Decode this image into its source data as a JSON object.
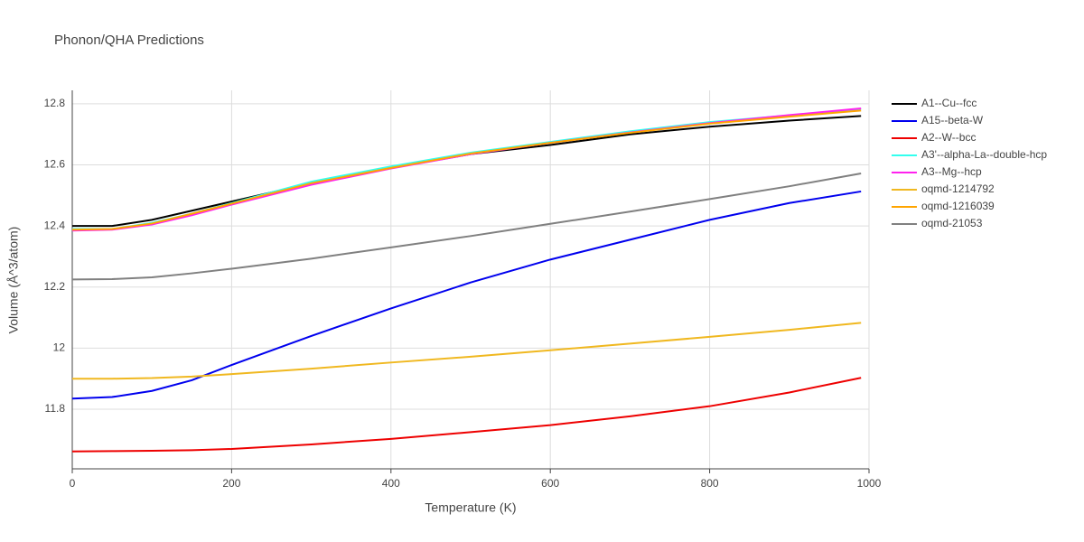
{
  "chart_data": {
    "type": "line",
    "title": "Phonon/QHA Predictions",
    "x_label": "Temperature (K)",
    "y_label": "Volume (Å^3/atom)",
    "x": [
      0,
      50,
      100,
      150,
      200,
      300,
      400,
      500,
      600,
      700,
      800,
      900,
      990
    ],
    "series": [
      {
        "name": "A1--Cu--fcc",
        "color": "#000000",
        "values": [
          12.4,
          12.4,
          12.42,
          12.45,
          12.48,
          12.54,
          12.59,
          12.635,
          12.665,
          12.7,
          12.725,
          12.745,
          12.76
        ]
      },
      {
        "name": "A15--beta-W",
        "color": "#0000ee",
        "values": [
          11.835,
          11.84,
          11.86,
          11.895,
          11.945,
          12.04,
          12.13,
          12.215,
          12.29,
          12.355,
          12.42,
          12.475,
          12.513
        ]
      },
      {
        "name": "A2--W--bcc",
        "color": "#ee0000",
        "values": [
          11.662,
          11.663,
          11.664,
          11.666,
          11.67,
          11.685,
          11.703,
          11.725,
          11.748,
          11.777,
          11.81,
          11.855,
          11.903
        ]
      },
      {
        "name": "A3'--alpha-La--double-hcp",
        "color": "#33ffee",
        "values": [
          12.39,
          12.39,
          12.41,
          12.44,
          12.475,
          12.545,
          12.595,
          12.64,
          12.675,
          12.71,
          12.74,
          12.762,
          12.783
        ]
      },
      {
        "name": "A3--Mg--hcp",
        "color": "#ff22ee",
        "values": [
          12.385,
          12.388,
          12.405,
          12.435,
          12.47,
          12.535,
          12.588,
          12.635,
          12.672,
          12.706,
          12.737,
          12.763,
          12.785
        ]
      },
      {
        "name": "oqmd-1214792",
        "color": "#f0b820",
        "values": [
          11.9,
          11.9,
          11.902,
          11.907,
          11.915,
          11.933,
          11.953,
          11.972,
          11.993,
          12.015,
          12.037,
          12.06,
          12.083
        ]
      },
      {
        "name": "oqmd-1216039",
        "color": "#ffa500",
        "values": [
          12.388,
          12.39,
          12.408,
          12.44,
          12.473,
          12.54,
          12.59,
          12.637,
          12.672,
          12.705,
          12.735,
          12.758,
          12.778
        ]
      },
      {
        "name": "oqmd-21053",
        "color": "#808080",
        "values": [
          12.225,
          12.226,
          12.232,
          12.245,
          12.26,
          12.293,
          12.33,
          12.367,
          12.407,
          12.447,
          12.488,
          12.53,
          12.572
        ]
      }
    ],
    "xlim": [
      0,
      1000
    ],
    "xticks": [
      0,
      200,
      400,
      600,
      800,
      1000
    ],
    "ylim": [
      11.605,
      12.844
    ],
    "yticks": [
      11.8,
      12,
      12.2,
      12.4,
      12.6,
      12.8
    ],
    "grid": true,
    "legend": "right"
  }
}
